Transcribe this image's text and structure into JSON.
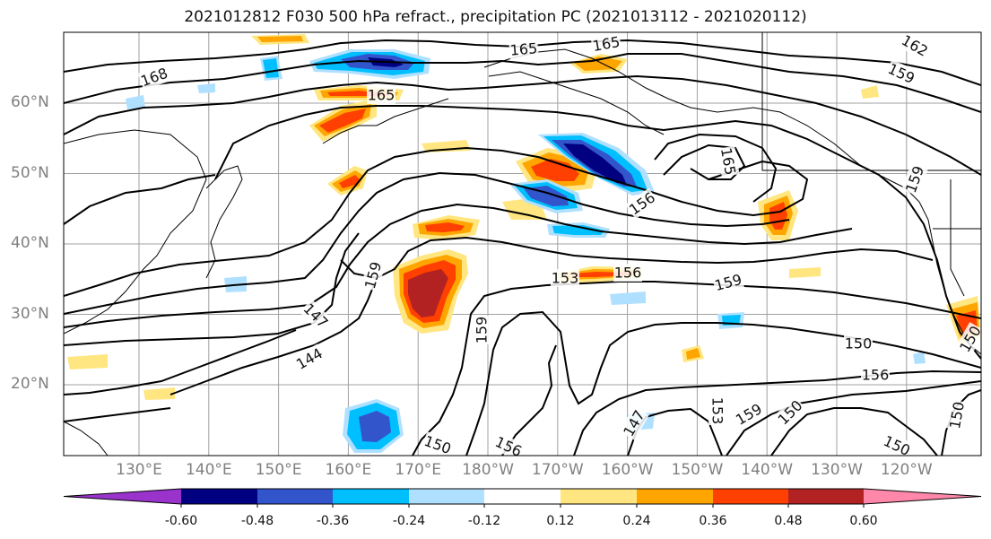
{
  "title": "2021012812 F030 500 hPa refract., precipitation PC (2021013112 - 2021020112)",
  "lat_labels": [
    {
      "text": "60°N",
      "lat": 60
    },
    {
      "text": "50°N",
      "lat": 50
    },
    {
      "text": "40°N",
      "lat": 40
    },
    {
      "text": "30°N",
      "lat": 30
    },
    {
      "text": "20°N",
      "lat": 20
    }
  ],
  "lon_labels": [
    "130°E",
    "140°E",
    "150°E",
    "160°E",
    "170°E",
    "180°W",
    "170°W",
    "160°W",
    "150°W",
    "140°W",
    "130°W",
    "120°W"
  ],
  "contour_labels": [
    "168",
    "165",
    "165",
    "162",
    "165",
    "159",
    "165",
    "159",
    "156",
    "159",
    "153",
    "156",
    "159",
    "159",
    "147",
    "144",
    "150",
    "156",
    "147",
    "150",
    "156",
    "159",
    "150",
    "153",
    "150",
    "150",
    "150"
  ],
  "colorbar": {
    "ticks": [
      "-0.60",
      "-0.48",
      "-0.36",
      "-0.24",
      "-0.12",
      "0.12",
      "0.24",
      "0.36",
      "0.48",
      "0.60"
    ],
    "colors": [
      "#9933cc",
      "#000080",
      "#3355cc",
      "#00bfff",
      "#b0e0ff",
      "#ffffff",
      "#ffe680",
      "#ffa500",
      "#ff4000",
      "#b22222",
      "#ff88aa"
    ]
  }
}
